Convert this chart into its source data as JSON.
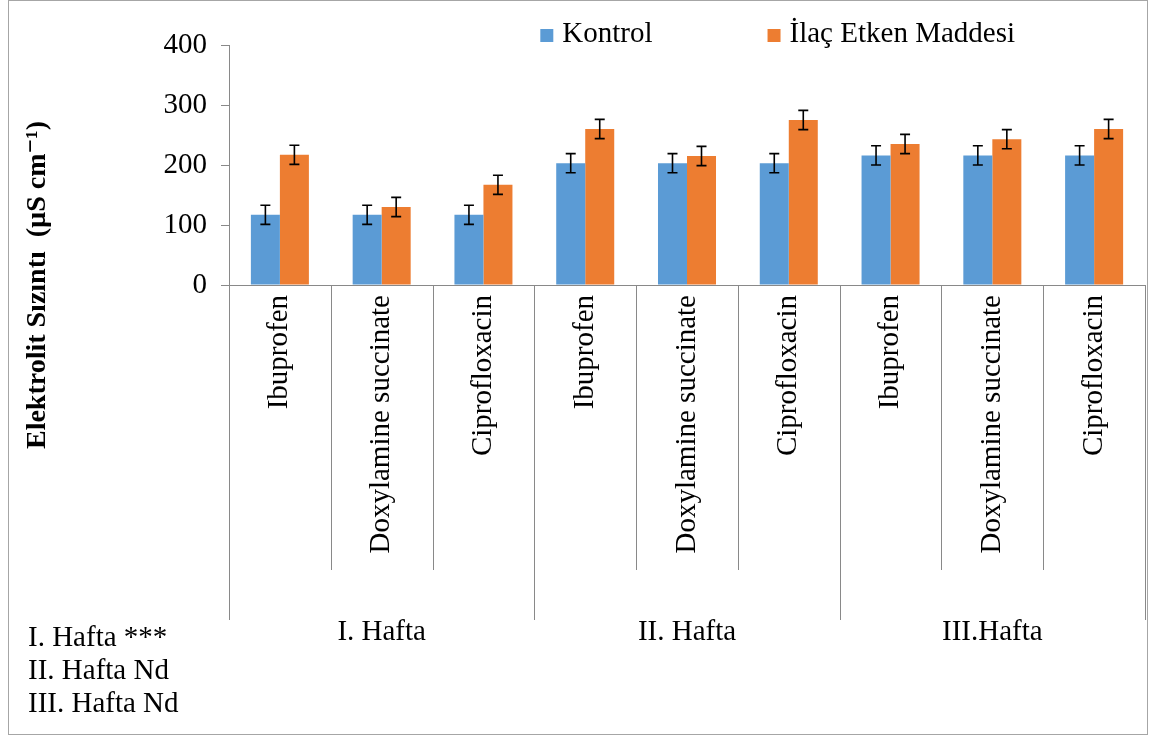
{
  "chart_data": {
    "type": "bar",
    "categories": [
      "Ibuprofen",
      "Doxylamine succinate",
      "Ciprofloxacin",
      "Ibuprofen",
      "Doxylamine succinate",
      "Ciprofloxacin",
      "Ibuprofen",
      "Doxylamine succinate",
      "Ciprofloxacin"
    ],
    "series": [
      {
        "name": "Kontrol",
        "color": "#5b9bd5",
        "values": [
          117,
          117,
          117,
          203,
          203,
          203,
          216,
          216,
          216
        ],
        "errors": [
          16,
          16,
          16,
          16,
          16,
          16,
          16,
          16,
          16
        ]
      },
      {
        "name": "İlaç Etken Maddesi",
        "color": "#ed7d31",
        "values": [
          217,
          130,
          167,
          260,
          215,
          275,
          235,
          243,
          260
        ],
        "errors": [
          16,
          16,
          16,
          16,
          16,
          16,
          16,
          16,
          16
        ]
      }
    ],
    "ylabel": "Elektrolit Sızıntı  (µS cm⁻¹)",
    "ylim": [
      0,
      400
    ],
    "yticks": [
      0,
      100,
      200,
      300,
      400
    ],
    "legend": "top right",
    "annotations": [
      "I. Hafta",
      "II. Hafta",
      "III.Hafta",
      "I. Hafta ***\nII. Hafta Nd\nIII. Hafta Nd"
    ]
  }
}
